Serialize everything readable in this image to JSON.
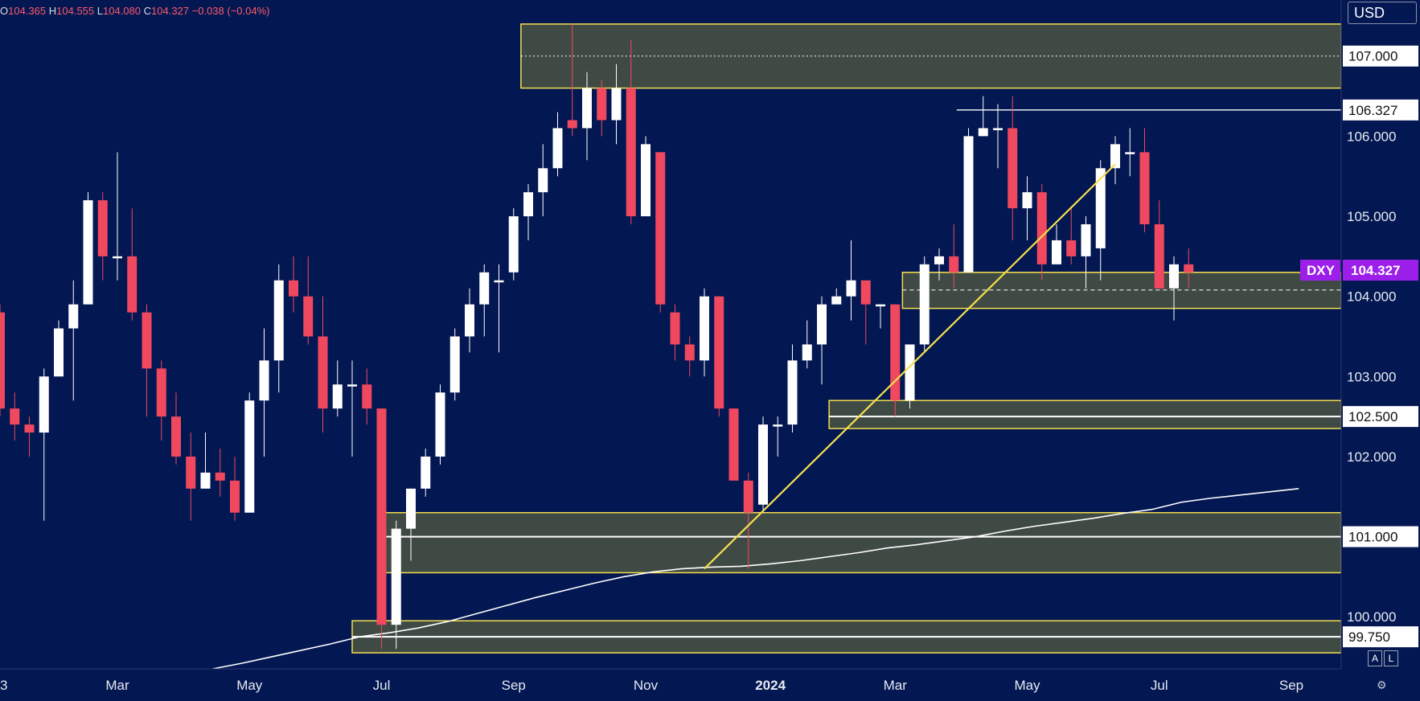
{
  "ohlc": {
    "open_label": "O",
    "open": "104.365",
    "high_label": "H",
    "high": "104.555",
    "low_label": "L",
    "low": "104.080",
    "close_label": "C",
    "close": "104.327",
    "change": "−0.038 (−0.04%)"
  },
  "currency_selector": "USD",
  "scale_buttons": [
    "A",
    "L"
  ],
  "colors": {
    "background": "#031752",
    "up_candle": "#ffffff",
    "down_candle": "#f0485f",
    "zone_fill": "#404a45",
    "zone_border": "#f4e04d",
    "trendline": "#f4e04d",
    "moving_average": "#ffffff",
    "symbol_badge": "#9b1fe8"
  },
  "chart_data": {
    "type": "candlestick",
    "symbol": "DXY",
    "interval": "weekly",
    "last_price": "104.327",
    "y_axis": {
      "range": [
        99.35,
        107.7
      ],
      "tick_labels": [
        "107.000",
        "106.000",
        "105.000",
        "104.000",
        "103.000",
        "102.000",
        "100.000"
      ]
    },
    "x_axis": {
      "tick_labels": [
        "Mar",
        "May",
        "Jul",
        "Sep",
        "Nov",
        "2024",
        "Mar",
        "May",
        "Jul",
        "Sep"
      ],
      "tick_index": [
        8,
        17,
        26,
        35,
        44,
        52.5,
        61,
        70,
        79,
        88
      ],
      "left_edge_label": "3"
    },
    "candles": [
      [
        103.8,
        102.6,
        103.9,
        102.5
      ],
      [
        102.6,
        102.4,
        102.8,
        102.2
      ],
      [
        102.4,
        102.3,
        102.5,
        102.0
      ],
      [
        102.3,
        103.0,
        103.1,
        101.2
      ],
      [
        103.0,
        103.6,
        103.7,
        103.0
      ],
      [
        103.6,
        103.9,
        104.2,
        102.7
      ],
      [
        103.9,
        105.2,
        105.3,
        103.9
      ],
      [
        105.2,
        104.5,
        105.3,
        104.2
      ],
      [
        104.5,
        104.5,
        105.8,
        104.2
      ],
      [
        104.5,
        103.8,
        105.1,
        103.7
      ],
      [
        103.8,
        103.1,
        103.9,
        102.5
      ],
      [
        103.1,
        102.5,
        103.2,
        102.2
      ],
      [
        102.5,
        102.0,
        102.8,
        101.9
      ],
      [
        102.0,
        101.6,
        102.3,
        101.2
      ],
      [
        101.6,
        101.8,
        102.3,
        101.6
      ],
      [
        101.8,
        101.7,
        102.1,
        101.5
      ],
      [
        101.7,
        101.3,
        102.0,
        101.2
      ],
      [
        101.3,
        102.7,
        102.8,
        101.3
      ],
      [
        102.7,
        103.2,
        103.6,
        102.0
      ],
      [
        103.2,
        104.2,
        104.4,
        102.8
      ],
      [
        104.2,
        104.0,
        104.5,
        103.8
      ],
      [
        104.0,
        103.5,
        104.5,
        103.4
      ],
      [
        103.5,
        102.6,
        104.0,
        102.3
      ],
      [
        102.6,
        102.9,
        103.2,
        102.5
      ],
      [
        102.9,
        102.9,
        103.2,
        102.0
      ],
      [
        102.9,
        102.6,
        103.1,
        102.4
      ],
      [
        102.6,
        99.9,
        102.6,
        99.6
      ],
      [
        99.9,
        101.1,
        101.2,
        99.6
      ],
      [
        101.1,
        101.6,
        101.6,
        100.7
      ],
      [
        101.6,
        102.0,
        102.1,
        101.5
      ],
      [
        102.0,
        102.8,
        102.9,
        101.9
      ],
      [
        102.8,
        103.5,
        103.6,
        102.7
      ],
      [
        103.5,
        103.9,
        104.1,
        103.3
      ],
      [
        103.9,
        104.3,
        104.4,
        103.5
      ],
      [
        104.2,
        104.2,
        104.4,
        103.3
      ],
      [
        104.3,
        105.0,
        105.1,
        104.2
      ],
      [
        105.0,
        105.3,
        105.4,
        104.7
      ],
      [
        105.3,
        105.6,
        105.9,
        105.0
      ],
      [
        105.6,
        106.1,
        106.3,
        105.5
      ],
      [
        106.2,
        106.1,
        107.4,
        106.0
      ],
      [
        106.1,
        106.6,
        106.8,
        105.7
      ],
      [
        106.6,
        106.2,
        106.7,
        106.0
      ],
      [
        106.2,
        106.6,
        106.9,
        105.9
      ],
      [
        106.6,
        105.0,
        107.2,
        104.9
      ],
      [
        105.0,
        105.9,
        106.0,
        105.0
      ],
      [
        105.8,
        103.9,
        105.8,
        103.8
      ],
      [
        103.8,
        103.4,
        103.9,
        103.2
      ],
      [
        103.4,
        103.2,
        103.5,
        103.0
      ],
      [
        103.2,
        104.0,
        104.1,
        103.0
      ],
      [
        104.0,
        102.6,
        104.0,
        102.5
      ],
      [
        102.6,
        101.7,
        102.6,
        101.7
      ],
      [
        101.7,
        101.3,
        101.8,
        100.6
      ],
      [
        101.4,
        102.4,
        102.5,
        101.3
      ],
      [
        102.4,
        102.4,
        102.5,
        102.0
      ],
      [
        102.4,
        103.2,
        103.4,
        102.3
      ],
      [
        103.2,
        103.4,
        103.7,
        103.1
      ],
      [
        103.4,
        103.9,
        104.0,
        102.9
      ],
      [
        103.9,
        104.0,
        104.1,
        103.9
      ],
      [
        104.0,
        104.2,
        104.7,
        103.7
      ],
      [
        104.2,
        103.9,
        104.2,
        103.4
      ],
      [
        103.9,
        103.9,
        103.9,
        103.6
      ],
      [
        103.9,
        102.7,
        103.9,
        102.5
      ],
      [
        102.7,
        103.4,
        103.4,
        102.6
      ],
      [
        103.4,
        104.4,
        104.5,
        103.3
      ],
      [
        104.4,
        104.5,
        104.6,
        104.2
      ],
      [
        104.5,
        104.3,
        104.9,
        104.1
      ],
      [
        104.3,
        106.0,
        106.1,
        104.3
      ],
      [
        106.0,
        106.1,
        106.5,
        106.0
      ],
      [
        106.1,
        106.1,
        106.4,
        105.6
      ],
      [
        106.1,
        105.1,
        106.5,
        104.7
      ],
      [
        105.1,
        105.3,
        105.5,
        104.7
      ],
      [
        105.3,
        104.4,
        105.4,
        104.2
      ],
      [
        104.4,
        104.7,
        104.9,
        104.4
      ],
      [
        104.7,
        104.5,
        105.1,
        104.4
      ],
      [
        104.5,
        104.9,
        105.0,
        104.1
      ],
      [
        104.6,
        105.6,
        105.7,
        104.2
      ],
      [
        105.6,
        105.9,
        106.0,
        105.4
      ],
      [
        105.8,
        105.8,
        106.1,
        105.5
      ],
      [
        105.8,
        104.9,
        106.1,
        104.8
      ],
      [
        104.9,
        104.1,
        105.2,
        104.1
      ],
      [
        104.1,
        104.4,
        104.5,
        103.7
      ],
      [
        104.4,
        104.3,
        104.6,
        104.1
      ]
    ],
    "moving_average": {
      "start_index": 14.5,
      "values": [
        99.35,
        99.42,
        99.5,
        99.58,
        99.66,
        99.75,
        99.8,
        99.86,
        99.94,
        100.04,
        100.14,
        100.24,
        100.33,
        100.42,
        100.5,
        100.56,
        100.6,
        100.62,
        100.63,
        100.66,
        100.7,
        100.75,
        100.8,
        100.86,
        100.9,
        100.95,
        101.0,
        101.07,
        101.13,
        101.18,
        101.23,
        101.29,
        101.34,
        101.43,
        101.48,
        101.52,
        101.56,
        101.6
      ]
    },
    "zones": [
      {
        "label": "107.000",
        "from_index": 35.5,
        "top": 107.4,
        "bottom": 106.6,
        "level": 107.0,
        "level_style": "dotted"
      },
      {
        "label": "102.500",
        "from_index": 56.5,
        "top": 102.7,
        "bottom": 102.35,
        "level": 102.5,
        "level_style": "solid"
      },
      {
        "label": "101.000",
        "from_index": 26,
        "top": 101.3,
        "bottom": 100.55,
        "level": 101.0,
        "level_style": "solid"
      },
      {
        "label": "99.750",
        "from_index": 24,
        "top": 99.95,
        "bottom": 99.55,
        "level": 99.75,
        "level_style": "solid"
      },
      {
        "label": "",
        "from_index": 61.5,
        "top": 104.3,
        "bottom": 103.85,
        "level": 104.08,
        "level_style": "dashed"
      }
    ],
    "level_lines": [
      {
        "label": "106.327",
        "from_index": 65.2,
        "value": 106.327
      }
    ],
    "trendline": {
      "from": [
        48,
        100.6
      ],
      "to": [
        76,
        105.65
      ]
    }
  }
}
